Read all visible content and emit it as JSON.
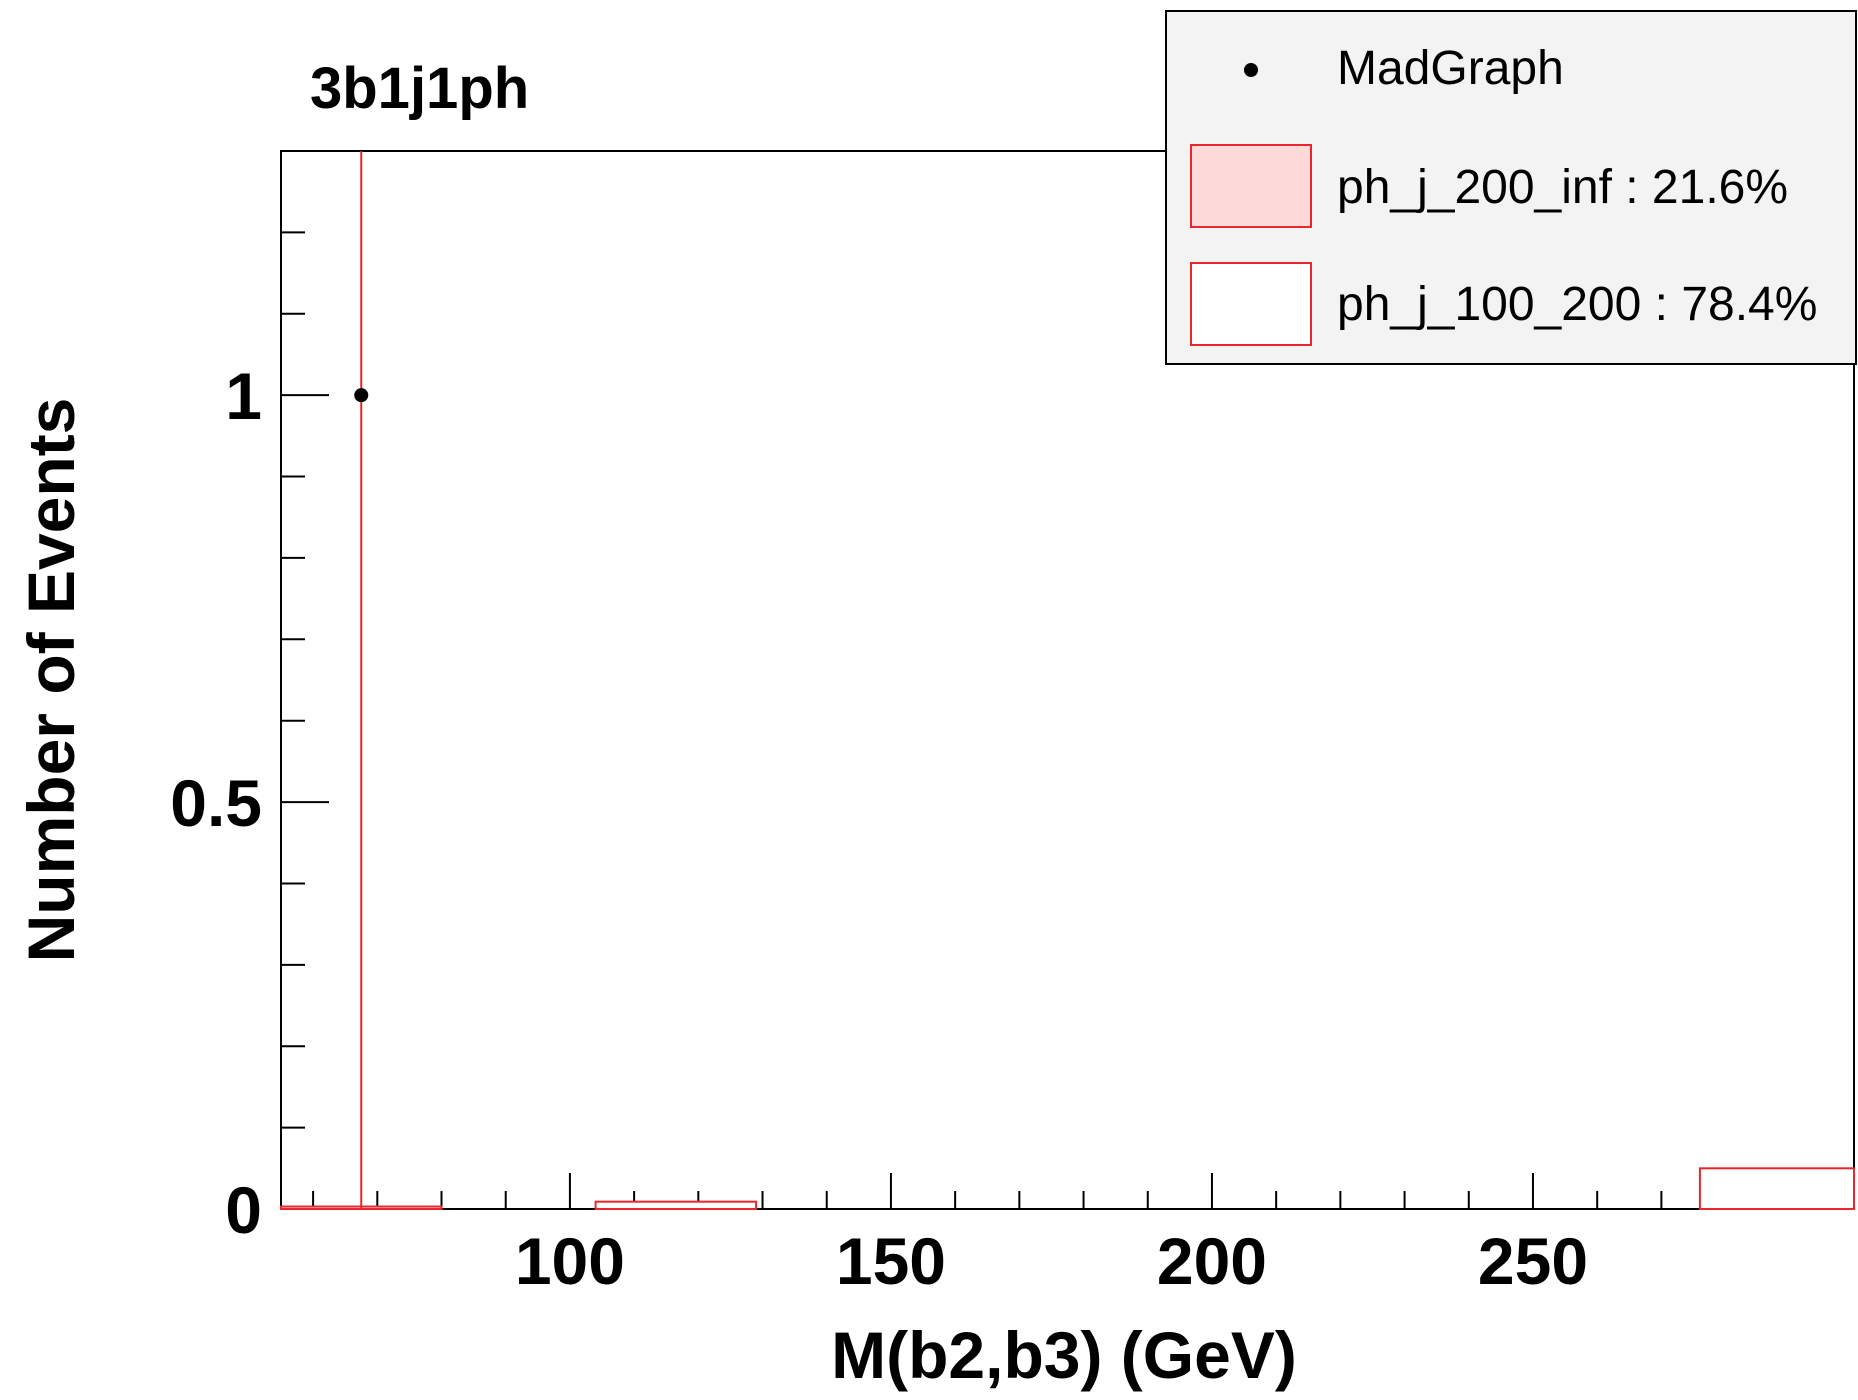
{
  "chart_data": {
    "type": "bar",
    "title": "3b1j1ph",
    "xlabel": "M(b2,b3) (GeV)",
    "ylabel": "Number of Events",
    "xlim": [
      55,
      300
    ],
    "ylim": [
      0,
      1.3
    ],
    "x_ticks": [
      100,
      150,
      200,
      250
    ],
    "x_tick_labels": [
      "100",
      "150",
      "200",
      "250"
    ],
    "y_ticks": [
      0,
      0.5,
      1
    ],
    "y_tick_labels": [
      "0",
      "0.5",
      "1"
    ],
    "grid": false,
    "legend_position": "top-right",
    "series": [
      {
        "name": "MadGraph",
        "kind": "points",
        "color": "#000000",
        "points": [
          {
            "x": 67.5,
            "y": 1.0,
            "err_low": 1.0,
            "err_high": 1.0
          }
        ]
      },
      {
        "name": "ph_j_200_inf : 21.6%",
        "kind": "hist-filled",
        "color": "#e8262b",
        "fill": "#ffdada",
        "bins": []
      },
      {
        "name": "ph_j_100_200 : 78.4%",
        "kind": "hist-outline",
        "color": "#e8262b",
        "fill": "#ffffff",
        "bins": [
          {
            "x0": 55,
            "x1": 80,
            "y": 0.003
          },
          {
            "x0": 104,
            "x1": 129,
            "y": 0.009
          },
          {
            "x0": 276,
            "x1": 300,
            "y": 0.05
          }
        ]
      }
    ]
  }
}
